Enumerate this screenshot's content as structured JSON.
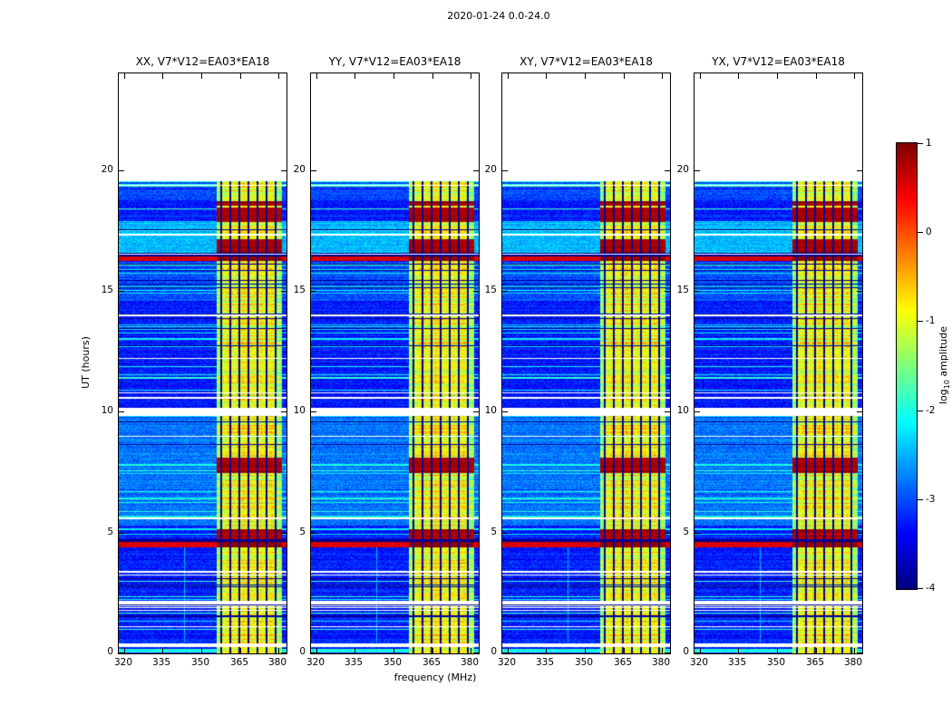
{
  "chart_data": {
    "type": "heatmap",
    "title": "2020-01-24 0.0-24.0",
    "xlabel": "frequency (MHz)",
    "ylabel": "UT (hours)",
    "panels": [
      {
        "polarization": "XX",
        "title": "XX, V7*V12=EA03*EA18"
      },
      {
        "polarization": "YY",
        "title": "YY, V7*V12=EA03*EA18"
      },
      {
        "polarization": "XY",
        "title": "XY, V7*V12=EA03*EA18"
      },
      {
        "polarization": "YX",
        "title": "YX, V7*V12=EA03*EA18"
      }
    ],
    "x_ticks": [
      320,
      335,
      350,
      365,
      380
    ],
    "y_ticks": [
      0,
      5,
      10,
      15,
      20
    ],
    "xlim": [
      318,
      383
    ],
    "ylim": [
      0,
      24
    ],
    "colorbar": {
      "label_prefix": "log",
      "label_sub": "10",
      "label_suffix": " amplitude",
      "ticks": [
        1,
        0,
        -1,
        -2,
        -3,
        -4
      ],
      "vmin": -4,
      "vmax": 1,
      "colormap": "jet"
    },
    "spectrogram": {
      "data_time_max": 19.55,
      "background_level": -3.25,
      "noise_amplitude": 0.55,
      "white_row_fraction": 0.03,
      "cyan_row_fraction": 0.075,
      "dark_row_fraction": 0.055,
      "cyan_row_level": -2.05,
      "dark_row_level": -3.9,
      "white_gap_hours": [
        [
          0.28,
          0.42
        ],
        [
          2.02,
          2.12
        ],
        [
          3.32,
          3.42
        ],
        [
          5.55,
          5.63
        ],
        [
          9.82,
          10.18
        ],
        [
          10.52,
          10.62
        ],
        [
          13.94,
          14.02
        ],
        [
          17.28,
          17.36
        ]
      ],
      "cyan_row_hours": [
        [
          0.05,
          0.2
        ],
        [
          19.3,
          19.42
        ]
      ],
      "dark_row_hours": [
        [
          4.63,
          4.72
        ],
        [
          16.43,
          16.5
        ]
      ],
      "red_line_hours": [
        [
          4.4,
          4.62
        ],
        [
          16.25,
          16.42
        ]
      ],
      "red_line_level": 0.55,
      "rfi_strong_hours": [
        [
          4.62,
          5.12
        ],
        [
          7.45,
          8.1
        ],
        [
          16.25,
          17.15
        ],
        [
          17.85,
          18.45
        ],
        [
          18.52,
          18.72
        ]
      ],
      "rfi_strong_level": 0.65,
      "elevated_regions": [
        [
          5.3,
          9.75,
          0.45
        ],
        [
          14.6,
          16.2,
          0.3
        ],
        [
          16.42,
          17.9,
          0.8
        ],
        [
          18.75,
          19.55,
          0.2
        ]
      ],
      "rfi_band": {
        "freq_mhz": [
          355.8,
          381.3
        ],
        "core_freq_mhz": [
          357.5,
          379.2
        ],
        "edge_level": -1.35,
        "core_level": -0.95,
        "dark_line_freqs_mhz": [
          357.7,
          361.2,
          364.7,
          368.2,
          371.7,
          375.2,
          378.7
        ],
        "dark_line_level": -3.85
      },
      "faint_vertical_lines": [
        {
          "freq_mhz": 343.5,
          "hours": [
            0.45,
            4.4
          ],
          "level": -2.5
        }
      ]
    }
  }
}
